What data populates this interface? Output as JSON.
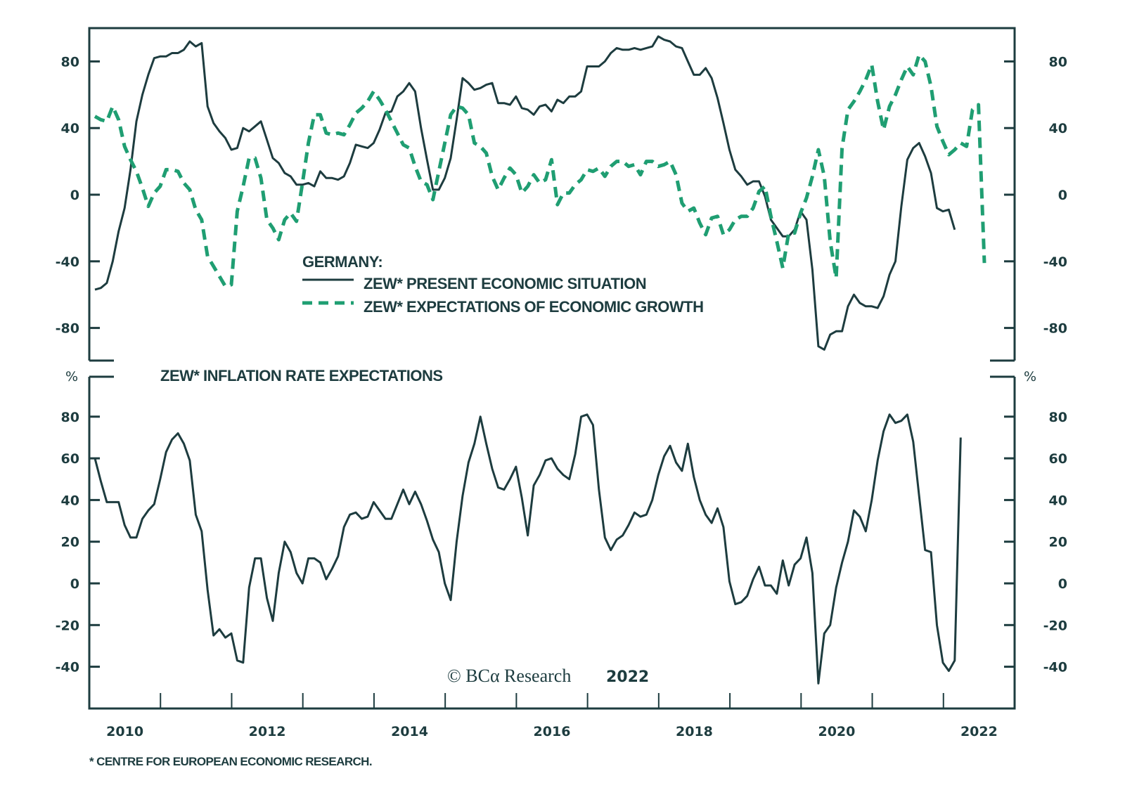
{
  "chart_data": [
    {
      "type": "line",
      "panel": "top",
      "title": "GERMANY:",
      "x_start": "2010-01",
      "x_frequency": "monthly",
      "ylim": [
        -100,
        100
      ],
      "yticks": [
        80,
        40,
        0,
        -40,
        -80
      ],
      "ytick_labels": [
        "80",
        "40",
        "0",
        "-40",
        "-80"
      ],
      "grid": false,
      "legend_placement": "center",
      "series": [
        {
          "name": "ZEW* PRESENT ECONOMIC SITUATION",
          "style": "solid",
          "color": "#1d3c3f",
          "values": [
            -57,
            -56,
            -53,
            -40,
            -22,
            -8,
            15,
            44,
            60,
            72,
            82,
            83,
            83,
            85,
            85,
            87,
            92,
            89,
            91,
            53,
            43,
            38,
            34,
            27,
            28,
            40,
            38,
            41,
            44,
            33,
            22,
            19,
            13,
            11,
            6,
            6,
            7,
            5,
            14,
            10,
            10,
            9,
            11,
            19,
            30,
            29,
            28,
            31,
            39,
            49,
            50,
            59,
            62,
            67,
            62,
            40,
            21,
            3,
            3,
            10,
            22,
            45,
            70,
            67,
            63,
            64,
            66,
            67,
            55,
            55,
            54,
            59,
            52,
            51,
            48,
            53,
            54,
            50,
            57,
            55,
            59,
            59,
            62,
            77,
            77,
            77,
            80,
            85,
            88,
            87,
            87,
            88,
            87,
            88,
            89,
            95,
            93,
            92,
            89,
            88,
            80,
            72,
            72,
            76,
            70,
            58,
            43,
            27,
            15,
            11,
            6,
            8,
            8,
            -1,
            -15,
            -20,
            -25,
            -25,
            -21,
            -10,
            -15,
            -45,
            -91,
            -93,
            -84,
            -82,
            -82,
            -67,
            -60,
            -65,
            -67,
            -67,
            -68,
            -61,
            -48,
            -40,
            -7,
            21,
            28,
            31,
            23,
            13,
            -8,
            -10,
            -9,
            -21
          ]
        },
        {
          "name": "ZEW* EXPECTATIONS OF ECONOMIC GROWTH",
          "style": "dashed",
          "color": "#1f9e72",
          "values": [
            47,
            45,
            44,
            53,
            45,
            29,
            21,
            14,
            4,
            -7,
            1,
            5,
            15,
            15,
            14,
            7,
            3,
            -9,
            -15,
            -37,
            -43,
            -49,
            -55,
            -54,
            -10,
            5,
            22,
            22,
            10,
            -15,
            -20,
            -27,
            -15,
            -11,
            -16,
            7,
            31,
            48,
            48,
            37,
            36,
            37,
            36,
            42,
            49,
            52,
            56,
            62,
            57,
            51,
            44,
            37,
            30,
            28,
            17,
            8,
            6,
            -3,
            14,
            31,
            48,
            53,
            52,
            48,
            31,
            29,
            25,
            11,
            3,
            10,
            16,
            12,
            1,
            5,
            12,
            7,
            9,
            21,
            -6,
            1,
            1,
            6,
            9,
            15,
            14,
            16,
            11,
            17,
            20,
            20,
            17,
            18,
            12,
            20,
            20,
            17,
            18,
            20,
            12,
            -5,
            -10,
            -8,
            -17,
            -24,
            -14,
            -13,
            -24,
            -21,
            -15,
            -13,
            -13,
            -8,
            2,
            5,
            -13,
            -28,
            -44,
            -23,
            -23,
            -11,
            -2,
            11,
            27,
            11,
            -28,
            -50,
            28,
            51,
            56,
            62,
            69,
            78,
            56,
            39,
            53,
            60,
            69,
            77,
            72,
            84,
            80,
            65,
            41,
            32,
            24,
            27,
            31,
            29,
            51,
            54,
            -41
          ]
        }
      ]
    },
    {
      "type": "line",
      "panel": "bottom",
      "title": "ZEW* INFLATION RATE EXPECTATIONS",
      "ylabel": "%",
      "x_start": "2010-01",
      "x_frequency": "monthly",
      "ylim": [
        -60,
        100
      ],
      "yticks": [
        80,
        60,
        40,
        20,
        0,
        -20,
        -40
      ],
      "ytick_labels": [
        "80",
        "60",
        "40",
        "20",
        "0",
        "-20",
        "-40"
      ],
      "grid": false,
      "series": [
        {
          "name": "ZEW* INFLATION RATE EXPECTATIONS",
          "style": "solid",
          "color": "#1d3c3f",
          "values": [
            60,
            49,
            39,
            39,
            39,
            28,
            22,
            22,
            31,
            35,
            38,
            50,
            63,
            69,
            72,
            67,
            59,
            33,
            25,
            -3,
            -25,
            -22,
            -26,
            -24,
            -37,
            -38,
            -2,
            12,
            12,
            -7,
            -18,
            5,
            20,
            15,
            5,
            0,
            12,
            12,
            10,
            2,
            7,
            13,
            27,
            33,
            34,
            31,
            32,
            39,
            35,
            31,
            31,
            38,
            45,
            38,
            44,
            38,
            30,
            21,
            15,
            0,
            -8,
            20,
            42,
            58,
            67,
            80,
            67,
            55,
            46,
            45,
            50,
            56,
            41,
            23,
            47,
            52,
            59,
            60,
            55,
            52,
            50,
            62,
            80,
            81,
            76,
            45,
            22,
            16,
            21,
            23,
            28,
            34,
            32,
            33,
            40,
            52,
            61,
            66,
            58,
            54,
            67,
            51,
            40,
            33,
            29,
            36,
            27,
            1,
            -10,
            -9,
            -6,
            2,
            8,
            -1,
            -1,
            -5,
            11,
            -1,
            9,
            12,
            22,
            5,
            -48,
            -24,
            -20,
            -2,
            10,
            20,
            35,
            32,
            25,
            40,
            59,
            73,
            81,
            77,
            78,
            81,
            68,
            42,
            16,
            15,
            -20,
            -38,
            -42,
            -37,
            70
          ]
        }
      ]
    },
    {
      "shared_x_axis": true,
      "xtick_labels": [
        "2010",
        "2012",
        "2014",
        "2016",
        "2018",
        "2020",
        "2022"
      ],
      "xlim": [
        "2010-01",
        "2022-12"
      ]
    }
  ],
  "legend": {
    "heading": "GERMANY:",
    "items": [
      {
        "label": "ZEW* PRESENT ECONOMIC SITUATION",
        "style": "solid",
        "color": "#1d3c3f"
      },
      {
        "label": "ZEW* EXPECTATIONS OF ECONOMIC GROWTH",
        "style": "dashed",
        "color": "#1f9e72"
      }
    ]
  },
  "bottom_panel": {
    "title": "ZEW* INFLATION RATE EXPECTATIONS",
    "unit_left": "%",
    "unit_right": "%"
  },
  "watermark": {
    "brand": "© BCα Research",
    "year": "2022"
  },
  "footnote": "* CENTRE FOR EUROPEAN ECONOMIC RESEARCH.",
  "colors": {
    "axis": "#1d3c3f",
    "present": "#1d3c3f",
    "expectations": "#1f9e72",
    "inflation": "#1d3c3f"
  }
}
